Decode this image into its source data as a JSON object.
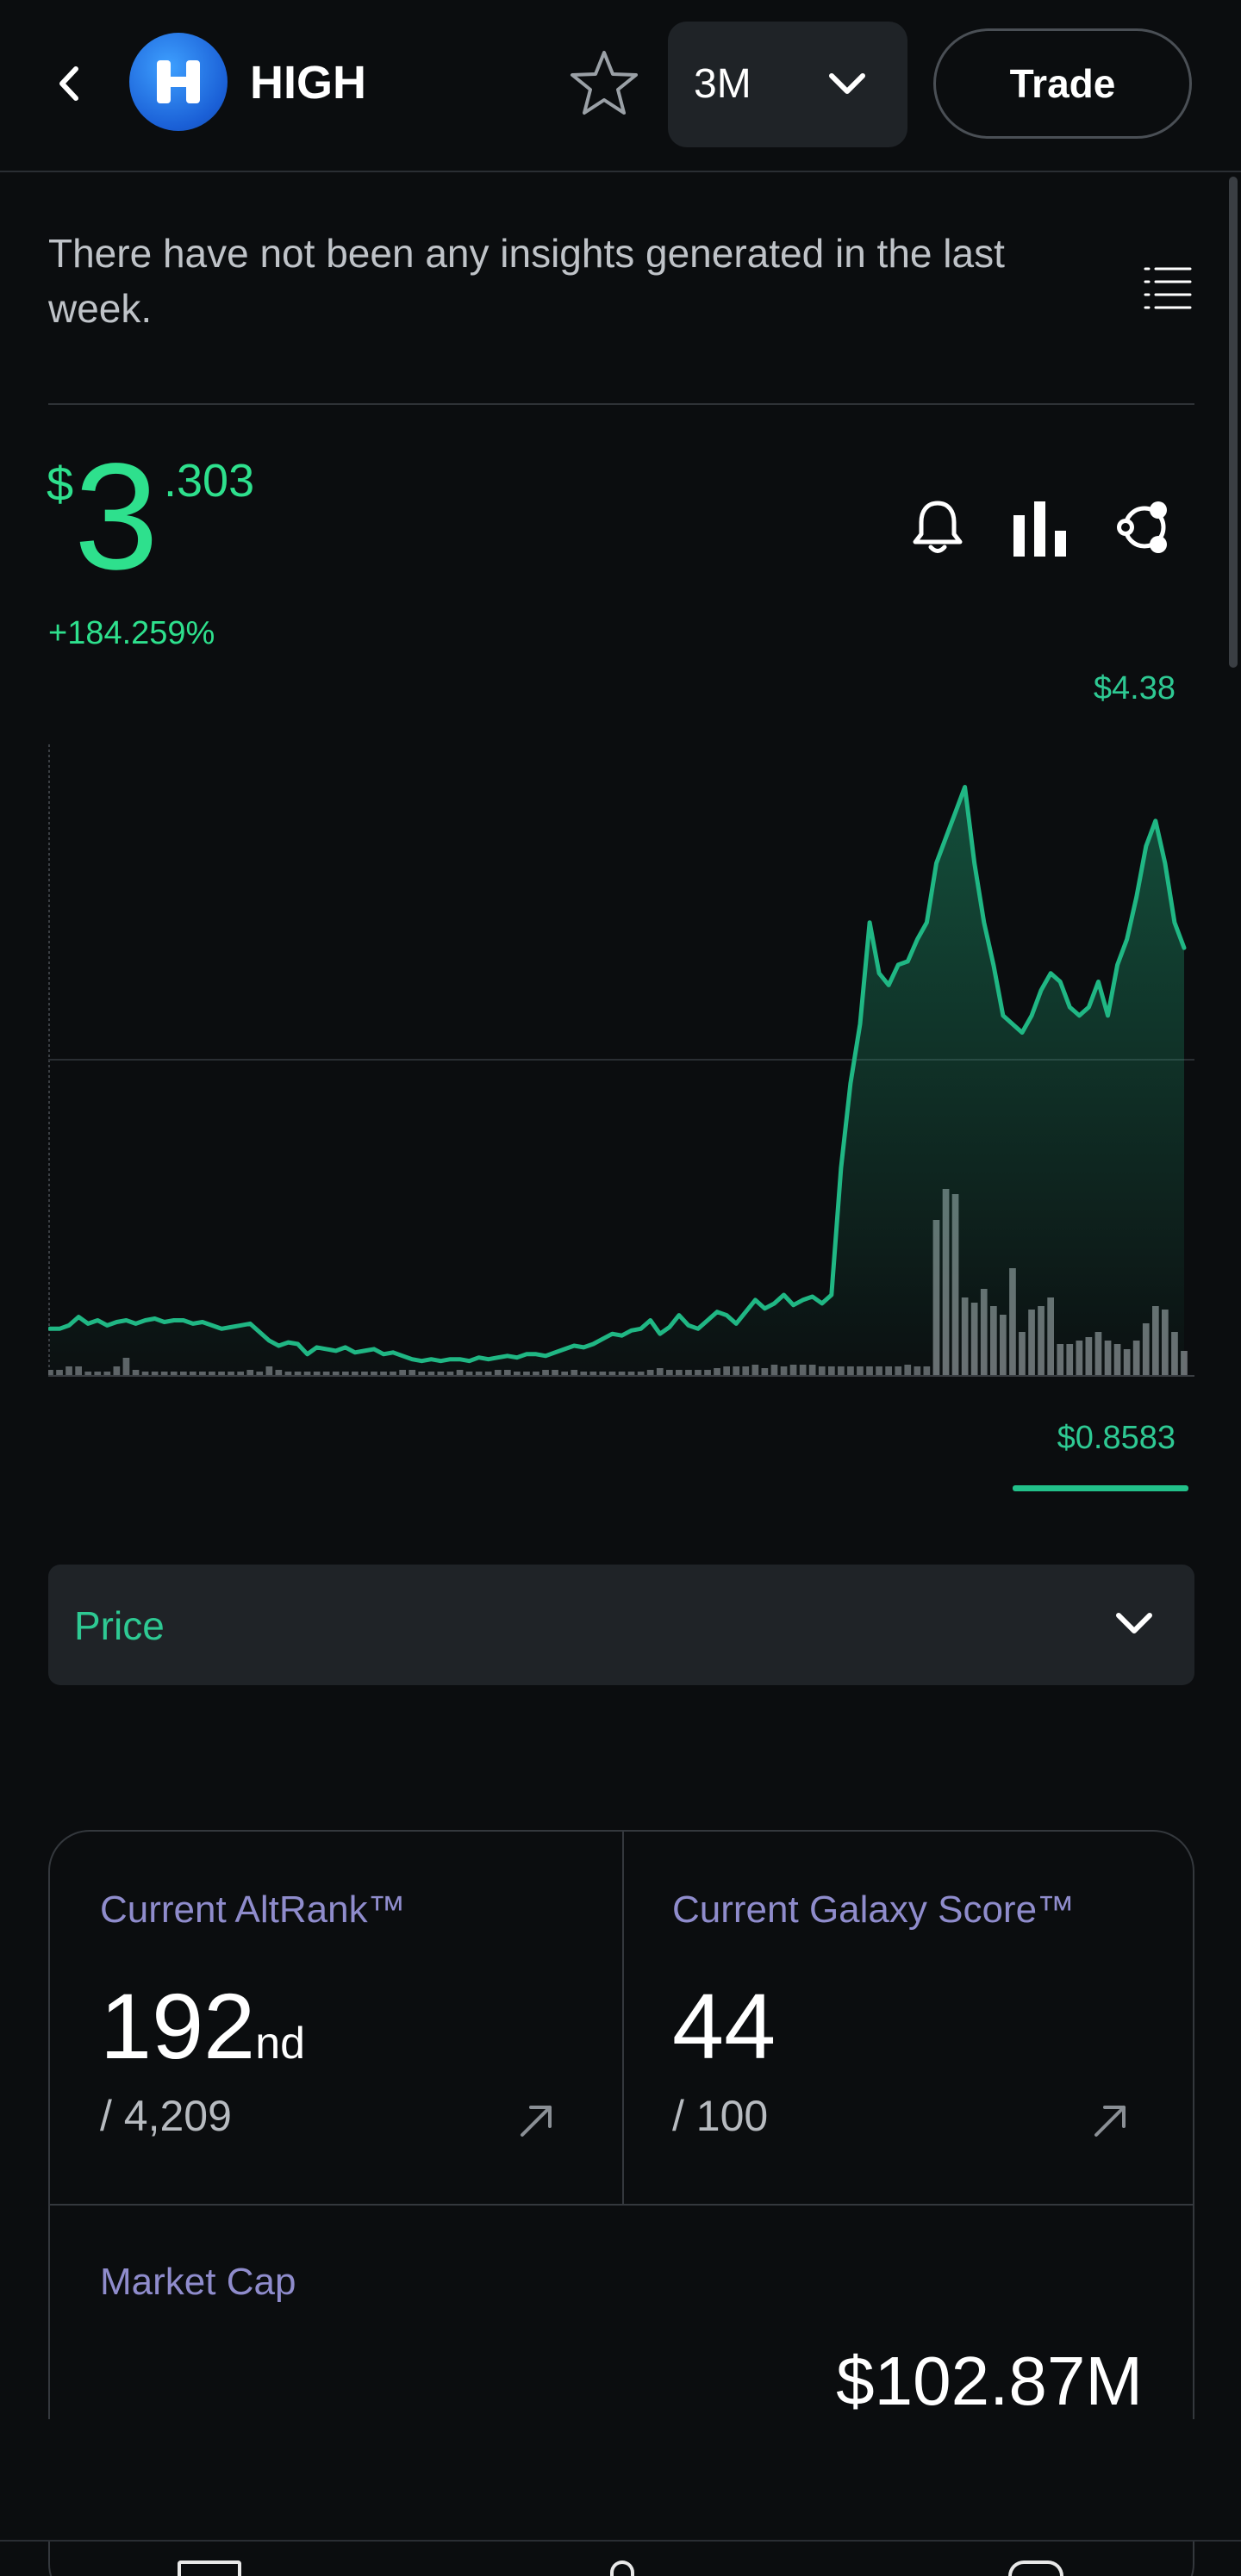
{
  "header": {
    "ticker": "HIGH",
    "logo_letter": "H",
    "period": "3M",
    "trade_label": "Trade"
  },
  "insights": {
    "text": "There have not been any insights generated in the last week."
  },
  "price": {
    "currency": "$",
    "integer": "3",
    "decimal": ".303",
    "change": "+184.259%"
  },
  "chart": {
    "max_label": "$4.38",
    "min_label": "$0.8583"
  },
  "chart_data": {
    "type": "area",
    "y_max": 4.38,
    "y_min": 0.8583,
    "x_count": 120,
    "price_series": [
      1.05,
      1.05,
      1.07,
      1.12,
      1.08,
      1.1,
      1.07,
      1.09,
      1.1,
      1.08,
      1.1,
      1.11,
      1.09,
      1.1,
      1.1,
      1.08,
      1.09,
      1.07,
      1.05,
      1.06,
      1.07,
      1.08,
      1.03,
      0.98,
      0.95,
      0.97,
      0.96,
      0.9,
      0.94,
      0.93,
      0.92,
      0.94,
      0.91,
      0.92,
      0.93,
      0.9,
      0.91,
      0.89,
      0.87,
      0.86,
      0.87,
      0.86,
      0.87,
      0.87,
      0.86,
      0.88,
      0.87,
      0.88,
      0.89,
      0.88,
      0.9,
      0.9,
      0.89,
      0.91,
      0.93,
      0.95,
      0.94,
      0.96,
      0.99,
      1.02,
      1.01,
      1.04,
      1.05,
      1.1,
      1.02,
      1.06,
      1.13,
      1.07,
      1.05,
      1.1,
      1.15,
      1.13,
      1.08,
      1.15,
      1.22,
      1.17,
      1.2,
      1.25,
      1.19,
      1.22,
      1.24,
      1.2,
      1.25,
      2.0,
      2.5,
      2.85,
      3.45,
      3.15,
      3.08,
      3.2,
      3.22,
      3.35,
      3.45,
      3.8,
      3.95,
      4.1,
      4.25,
      3.8,
      3.45,
      3.2,
      2.9,
      2.85,
      2.8,
      2.9,
      3.05,
      3.15,
      3.1,
      2.95,
      2.9,
      2.95,
      3.1,
      2.9,
      3.2,
      3.35,
      3.6,
      3.9,
      4.05,
      3.8,
      3.45,
      3.3
    ],
    "volume_series": [
      3,
      3,
      5,
      5,
      2,
      2,
      2,
      5,
      10,
      3,
      2,
      2,
      2,
      2,
      2,
      2,
      2,
      2,
      2,
      2,
      2,
      3,
      2,
      5,
      3,
      2,
      2,
      2,
      2,
      2,
      2,
      2,
      2,
      2,
      2,
      2,
      2,
      3,
      3,
      2,
      2,
      2,
      2,
      3,
      2,
      2,
      2,
      3,
      3,
      2,
      2,
      2,
      3,
      3,
      2,
      3,
      2,
      2,
      2,
      2,
      2,
      2,
      2,
      3,
      4,
      3,
      3,
      3,
      3,
      3,
      4,
      5,
      5,
      5,
      6,
      4,
      6,
      5,
      6,
      6,
      6,
      5,
      5,
      5,
      5,
      5,
      5,
      5,
      5,
      5,
      6,
      5,
      5,
      5,
      5,
      5,
      5,
      5,
      5,
      5,
      5,
      5,
      5,
      5,
      5,
      5,
      5,
      5,
      5,
      5,
      5,
      5,
      5,
      5,
      5,
      5,
      5,
      5,
      5,
      5
    ],
    "volume_bars_right": [
      90,
      108,
      105,
      45,
      42,
      50,
      40,
      35,
      62,
      25,
      38,
      40,
      45,
      18,
      18,
      20,
      22,
      25,
      20,
      18,
      15,
      20,
      30,
      40,
      38,
      25,
      14
    ]
  },
  "metric_select": {
    "label": "Price"
  },
  "stats": {
    "altrank_title": "Current AltRank™",
    "altrank_value": "192",
    "altrank_suffix": "nd",
    "altrank_total": "/ 4,209",
    "galaxy_title": "Current Galaxy Score™",
    "galaxy_value": "44",
    "galaxy_total": "/ 100",
    "mcap_title": "Market Cap",
    "mcap_value": "$102.87M"
  }
}
